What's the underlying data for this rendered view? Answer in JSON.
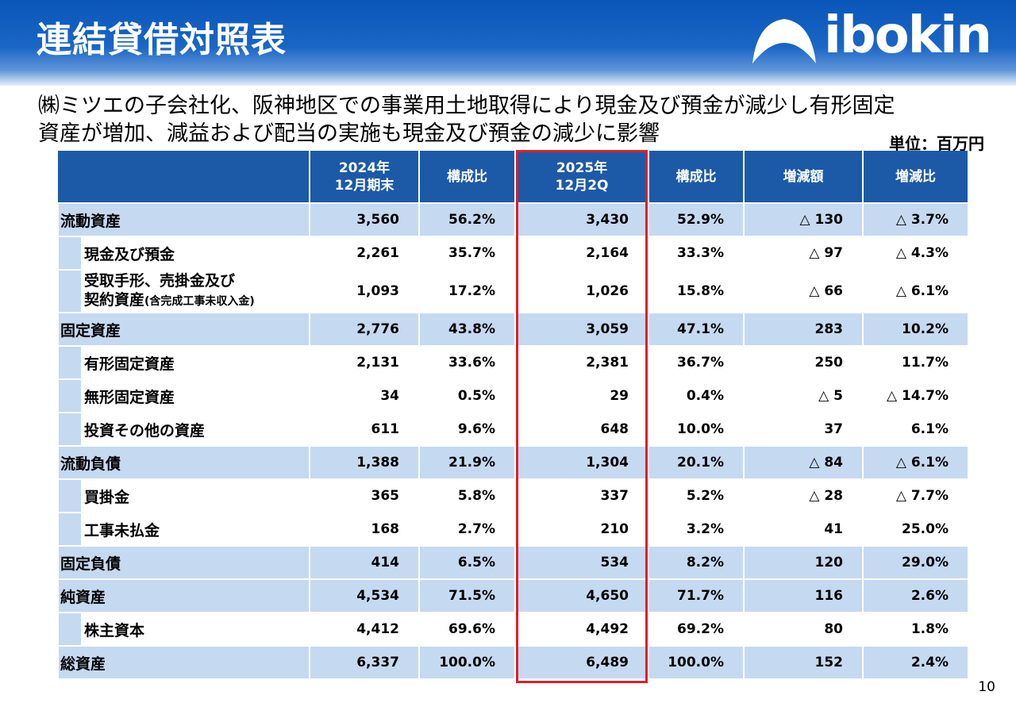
{
  "title": "連結貸借対照表",
  "logo": {
    "text": "ibokin"
  },
  "subtitle": {
    "line1": "㈱ミツエの子会社化、阪神地区での事業用土地取得により現金及び預金が減少し有形固定",
    "line2": "資産が増加、減益および配当の実施も現金及び預金の減少に影響"
  },
  "unit": "単位：百万円",
  "columns": [
    "",
    "2024年\n12月期末",
    "構成比",
    "2025年\n12月2Q",
    "構成比",
    "増減額",
    "増減比"
  ],
  "rows": [
    {
      "label": "流動資産",
      "type": "major",
      "cells": [
        "3,560",
        "56.2%",
        "3,430",
        "52.9%",
        "△ 130",
        "△ 3.7%"
      ]
    },
    {
      "label": "現金及び預金",
      "type": "minor",
      "cells": [
        "2,261",
        "35.7%",
        "2,164",
        "33.3%",
        "△ 97",
        "△ 4.3%"
      ]
    },
    {
      "label": "受取手形、売掛金及び",
      "label2": "契約資産",
      "label_note": "(含完成工事未収入金)",
      "type": "minor",
      "cells": [
        "1,093",
        "17.2%",
        "1,026",
        "15.8%",
        "△ 66",
        "△ 6.1%"
      ]
    },
    {
      "label": "固定資産",
      "type": "major",
      "cells": [
        "2,776",
        "43.8%",
        "3,059",
        "47.1%",
        "283",
        "10.2%"
      ]
    },
    {
      "label": "有形固定資産",
      "type": "minor",
      "cells": [
        "2,131",
        "33.6%",
        "2,381",
        "36.7%",
        "250",
        "11.7%"
      ]
    },
    {
      "label": "無形固定資産",
      "type": "minor",
      "cells": [
        "34",
        "0.5%",
        "29",
        "0.4%",
        "△ 5",
        "△ 14.7%"
      ]
    },
    {
      "label": "投資その他の資産",
      "type": "minor",
      "cells": [
        "611",
        "9.6%",
        "648",
        "10.0%",
        "37",
        "6.1%"
      ]
    },
    {
      "label": "流動負債",
      "type": "major",
      "cells": [
        "1,388",
        "21.9%",
        "1,304",
        "20.1%",
        "△ 84",
        "△ 6.1%"
      ]
    },
    {
      "label": "買掛金",
      "type": "minor",
      "cells": [
        "365",
        "5.8%",
        "337",
        "5.2%",
        "△ 28",
        "△ 7.7%"
      ]
    },
    {
      "label": "工事未払金",
      "type": "minor",
      "cells": [
        "168",
        "2.7%",
        "210",
        "3.2%",
        "41",
        "25.0%"
      ]
    },
    {
      "label": "固定負債",
      "type": "major",
      "cells": [
        "414",
        "6.5%",
        "534",
        "8.2%",
        "120",
        "29.0%"
      ]
    },
    {
      "label": "純資産",
      "type": "major",
      "cells": [
        "4,534",
        "71.5%",
        "4,650",
        "71.7%",
        "116",
        "2.6%"
      ]
    },
    {
      "label": "株主資本",
      "type": "minor",
      "cells": [
        "4,412",
        "69.6%",
        "4,492",
        "69.2%",
        "80",
        "1.8%"
      ]
    },
    {
      "label": "総資産",
      "type": "major",
      "cells": [
        "6,337",
        "100.0%",
        "6,489",
        "100.0%",
        "152",
        "2.4%"
      ]
    }
  ],
  "page_number": "10",
  "colors": {
    "header_blue": "#0a56b8",
    "table_header": "#1c5aa8",
    "major_row": "#c5d9f1",
    "highlight": "#e01f27"
  }
}
